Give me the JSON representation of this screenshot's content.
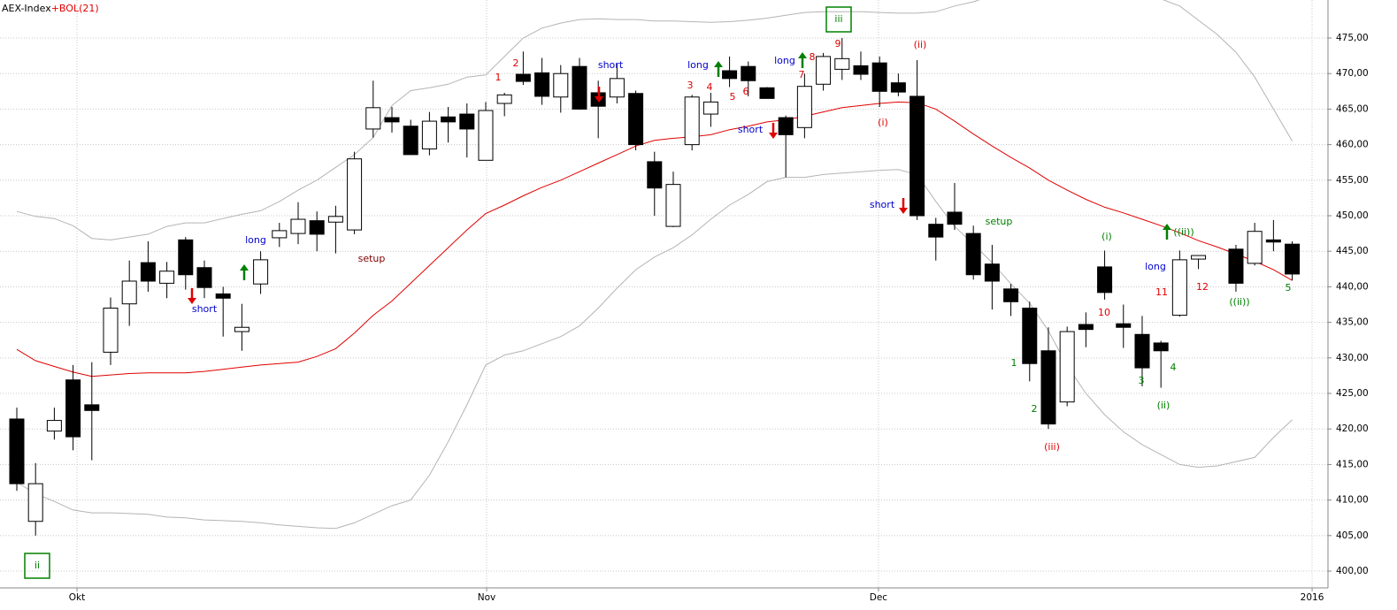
{
  "chart_data": {
    "type": "candlestick",
    "title": "AEX-Index",
    "indicator_label": "+BOL(21)",
    "x": [
      0,
      1,
      2,
      3,
      4,
      5,
      6,
      7,
      8,
      9,
      10,
      11,
      12,
      13,
      14,
      15,
      16,
      17,
      18,
      19,
      20,
      21,
      22,
      23,
      24,
      25,
      26,
      27,
      28,
      29,
      30,
      31,
      32,
      33,
      34,
      35,
      36,
      37,
      38,
      39,
      40,
      41,
      42,
      43,
      44,
      45,
      46,
      47,
      48,
      49,
      50,
      51,
      52,
      53,
      54,
      55,
      56,
      57,
      58,
      59,
      60,
      61,
      62,
      63,
      65,
      66,
      67,
      68
    ],
    "open": [
      421.4,
      407,
      419.7,
      426.9,
      423.4,
      430.8,
      437.6,
      443.4,
      440.5,
      446.6,
      442.7,
      439,
      433.7,
      440.4,
      446.9,
      447.5,
      449.3,
      449.1,
      448,
      462.2,
      463.8,
      462.6,
      459.4,
      463.9,
      464.3,
      457.8,
      465.8,
      469.9,
      470.1,
      466.7,
      471,
      467.3,
      466.7,
      467.2,
      457.6,
      448.5,
      460,
      464.3,
      470.4,
      471,
      468,
      463.8,
      462.4,
      468.5,
      470.6,
      471.1,
      471.5,
      468.7,
      466.8,
      448.8,
      450.5,
      447.5,
      443.2,
      439.7,
      437,
      431,
      423.8,
      434.7,
      442.8,
      434.8,
      433.3,
      432.1,
      436,
      443.9,
      445.3,
      443.3,
      446.6,
      446
    ],
    "high": [
      423,
      415.2,
      423,
      429,
      429.4,
      438.5,
      443.7,
      446.4,
      443.5,
      447,
      443.7,
      440,
      437.6,
      445,
      449,
      451.9,
      450.6,
      451.4,
      459,
      469,
      465.3,
      463.5,
      464.6,
      465.3,
      465.8,
      466,
      467.3,
      473.1,
      472.2,
      471.2,
      472.2,
      469,
      471.4,
      467.6,
      459,
      456.2,
      467,
      467.3,
      472.4,
      471.7,
      468.1,
      464.1,
      470,
      472.9,
      475,
      473.1,
      472.4,
      470,
      471.9,
      449.7,
      454.6,
      448.6,
      445.9,
      440.4,
      437.9,
      434.3,
      434.4,
      436.4,
      445.1,
      437.5,
      435.9,
      432.4,
      445.1,
      444.4,
      445.9,
      449,
      449.4,
      446.4
    ],
    "low": [
      411.3,
      405,
      418.5,
      417,
      415.6,
      429,
      434.5,
      439.3,
      438.4,
      439.6,
      438.4,
      433,
      431,
      439,
      445.6,
      446,
      445,
      444.7,
      447.4,
      461,
      461.7,
      458.6,
      458.5,
      460.3,
      458.2,
      457.8,
      464,
      468.4,
      465.6,
      464.5,
      464.9,
      460.9,
      465.8,
      459.2,
      450,
      448.4,
      459.2,
      462.5,
      468.1,
      466.8,
      466.5,
      455.4,
      460.9,
      467.6,
      469.1,
      469.1,
      465.3,
      466.8,
      449.4,
      443.7,
      448,
      441,
      436.8,
      435.9,
      426.7,
      420,
      423.2,
      431.5,
      438.2,
      431.4,
      426,
      425.8,
      435.8,
      442.5,
      439.3,
      443,
      445,
      440.9
    ],
    "close": [
      412.3,
      412.3,
      421.2,
      418.9,
      422.6,
      437,
      440.8,
      440.8,
      442.2,
      441.7,
      439.9,
      438.4,
      434.3,
      443.8,
      447.9,
      449.5,
      447.4,
      449.9,
      458,
      465.2,
      463.2,
      458.6,
      463.3,
      463.2,
      462.2,
      464.8,
      467,
      468.9,
      466.8,
      470,
      465,
      465.4,
      469.3,
      460,
      453.9,
      454.4,
      466.7,
      466,
      469.3,
      469,
      466.5,
      461.4,
      468.2,
      472.4,
      472.1,
      469.9,
      467.5,
      467.4,
      450,
      447,
      448.8,
      441.7,
      440.8,
      437.9,
      429.2,
      420.7,
      433.7,
      434,
      439.2,
      434.3,
      428.6,
      431,
      443.8,
      444.4,
      440.5,
      447.8,
      446.3,
      441.8
    ],
    "candle_colors": {
      "up": "#ffffff",
      "down": "#000000",
      "outline": "#000000"
    },
    "band_x": [
      0,
      1,
      2,
      3,
      4,
      5,
      6,
      7,
      8,
      9,
      10,
      11,
      12,
      13,
      14,
      15,
      16,
      17,
      18,
      19,
      20,
      21,
      22,
      23,
      24,
      25,
      26,
      27,
      28,
      29,
      30,
      31,
      32,
      33,
      34,
      35,
      36,
      37,
      38,
      39,
      40,
      41,
      42,
      43,
      44,
      45,
      46,
      47,
      48,
      49,
      50,
      51,
      52,
      53,
      54,
      55,
      56,
      57,
      58,
      59,
      60,
      61,
      62,
      63,
      64,
      65,
      66,
      67,
      68
    ],
    "bands": [
      {
        "color": "#b4b4b4",
        "values": [
          450.6,
          449.9,
          449.6,
          448.6,
          446.8,
          446.6,
          447,
          447.4,
          448.5,
          449,
          449,
          449.6,
          450.2,
          450.7,
          452,
          453.6,
          455,
          456.8,
          458.6,
          461,
          465.5,
          467.6,
          468,
          468.5,
          469.5,
          469.8,
          472.4,
          475,
          476.4,
          477.1,
          477.6,
          477.7,
          477.6,
          477.6,
          477.4,
          477.4,
          477.3,
          477.2,
          477.3,
          477.5,
          477.8,
          478.2,
          478.6,
          478.7,
          478.7,
          478.7,
          478.6,
          478.5,
          478.5,
          478.7,
          479.5,
          480.1,
          481,
          481.5,
          482,
          482.5,
          483,
          483,
          483,
          482.5,
          481.5,
          480.5,
          479.5,
          477.5,
          475.5,
          473,
          469.5,
          465,
          460.5
        ]
      },
      {
        "color": "#e00000",
        "values": [
          431.2,
          429.6,
          428.8,
          428,
          427.4,
          427.6,
          427.8,
          427.9,
          427.9,
          427.9,
          428.1,
          428.4,
          428.7,
          429,
          429.2,
          429.4,
          430.2,
          431.3,
          433.5,
          436,
          438,
          440.5,
          443,
          445.5,
          448,
          450.3,
          451.5,
          452.8,
          454,
          455,
          456.2,
          457.4,
          458.6,
          459.8,
          460.6,
          460.9,
          461.1,
          461.4,
          462.1,
          462.6,
          463.2,
          463.5,
          464,
          464.6,
          465.2,
          465.5,
          465.8,
          466,
          465.9,
          465,
          463.3,
          461.5,
          459.8,
          458.2,
          456.7,
          455,
          453.6,
          452.3,
          451.2,
          450.4,
          449.5,
          448.6,
          447.6,
          446.5,
          445.6,
          444.6,
          443.6,
          442.4,
          440.9
        ]
      },
      {
        "color": "#b4b4b4",
        "values": [
          412.5,
          410.9,
          409.8,
          408.6,
          408.2,
          408.2,
          408.1,
          408,
          407.6,
          407.5,
          407.2,
          407.1,
          407,
          406.8,
          406.5,
          406.3,
          406.1,
          406,
          406.8,
          408,
          409.2,
          410,
          413.5,
          418.2,
          423.4,
          429,
          430.4,
          431,
          432,
          433,
          434.5,
          437,
          439.8,
          442.4,
          444.2,
          445.5,
          447.3,
          449.5,
          451.5,
          453,
          454.8,
          455.4,
          455.4,
          455.8,
          456,
          456.2,
          456.4,
          456.5,
          455.8,
          452,
          448.5,
          446,
          443.4,
          440.4,
          437.7,
          433.8,
          428.9,
          425,
          422,
          419.6,
          417.8,
          416.4,
          415,
          414.6,
          414.8,
          415.4,
          416,
          418.8,
          421.3
        ]
      }
    ],
    "xlim": [
      -0.896,
      69.86
    ],
    "xticks": [
      {
        "value": 3.21,
        "label": "Okt"
      },
      {
        "value": 25.05,
        "label": "Nov"
      },
      {
        "value": 45.94,
        "label": "Dec"
      },
      {
        "value": 69.06,
        "label": "2016"
      }
    ],
    "ylim": [
      397.64,
      480.35
    ],
    "yticks": [
      {
        "value": 400,
        "label": "400,00"
      },
      {
        "value": 405,
        "label": "405,00"
      },
      {
        "value": 410,
        "label": "410,00"
      },
      {
        "value": 415,
        "label": "415,00"
      },
      {
        "value": 420,
        "label": "420,00"
      },
      {
        "value": 425,
        "label": "425,00"
      },
      {
        "value": 430,
        "label": "430,00"
      },
      {
        "value": 435,
        "label": "435,00"
      },
      {
        "value": 440,
        "label": "440,00"
      },
      {
        "value": 445,
        "label": "445,00"
      },
      {
        "value": 450,
        "label": "450,00"
      },
      {
        "value": 455,
        "label": "455,00"
      },
      {
        "value": 460,
        "label": "460,00"
      },
      {
        "value": 465,
        "label": "465,00"
      },
      {
        "value": 470,
        "label": "470,00"
      },
      {
        "value": 475,
        "label": "475,00"
      }
    ],
    "grid": true,
    "annotations": [
      "short",
      "long",
      "setup",
      "1",
      "2",
      "short",
      "long",
      "3",
      "4",
      "5",
      "6",
      "short",
      "long",
      "8",
      "7",
      "9",
      "iii",
      "(ii)",
      "(i)",
      "short",
      "setup",
      "(i)",
      "10",
      "1",
      "2",
      "(iii)",
      "long",
      "((ii))",
      "11",
      "12",
      "((ii))",
      "5",
      "3",
      "4",
      "(ii)",
      "ii"
    ]
  }
}
